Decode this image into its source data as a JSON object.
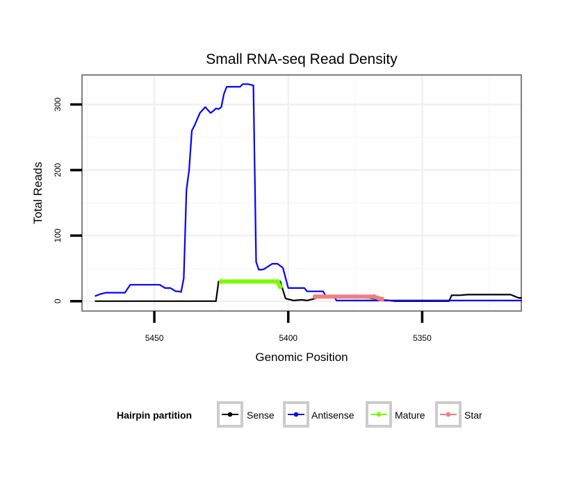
{
  "chart_data": {
    "type": "line",
    "title": "Small RNA-seq Read Density",
    "xlabel": "Genomic Position",
    "ylabel": "Total Reads",
    "x_reversed": true,
    "xlim": [
      5477,
      5313
    ],
    "ylim": [
      -15,
      345
    ],
    "xticks": [
      5450,
      5400,
      5350
    ],
    "yticks": [
      0,
      100,
      200,
      300
    ],
    "grid": true,
    "legend": {
      "title": "Hairpin partition",
      "position": "bottom",
      "items": [
        "Sense",
        "Antisense",
        "Mature",
        "Star"
      ]
    },
    "series": [
      {
        "name": "Sense",
        "color": "#000000",
        "x": [
          5472,
          5472,
          5427,
          5426,
          5424,
          5405,
          5403,
          5401,
          5398,
          5395,
          5393,
          5390,
          5389,
          5385,
          5380,
          5370,
          5365,
          5360,
          5350,
          5340,
          5339,
          5336,
          5333,
          5330,
          5325,
          5320,
          5317,
          5314,
          5313
        ],
        "y": [
          0,
          0,
          0,
          30,
          31,
          31,
          30,
          4,
          1,
          2,
          1,
          4,
          7,
          7,
          7,
          5,
          2,
          0,
          0,
          0,
          9,
          9,
          10,
          10,
          10,
          10,
          10,
          5,
          5
        ]
      },
      {
        "name": "Antisense",
        "color": "#0000ff",
        "x": [
          5472,
          5470,
          5468,
          5461,
          5459,
          5457,
          5448,
          5446,
          5444,
          5442,
          5441,
          5440,
          5439,
          5438,
          5437,
          5436,
          5435,
          5433,
          5431,
          5429,
          5428,
          5427,
          5426,
          5425,
          5424,
          5423,
          5418,
          5417,
          5415,
          5413,
          5412,
          5411,
          5410,
          5409,
          5406,
          5404,
          5402,
          5400,
          5394,
          5393,
          5387,
          5386,
          5383,
          5382,
          5313
        ],
        "y": [
          8,
          11,
          13,
          13,
          25,
          25,
          25,
          20,
          20,
          15,
          15,
          14,
          35,
          170,
          200,
          260,
          268,
          287,
          296,
          287,
          290,
          294,
          293,
          296,
          316,
          327,
          327,
          331,
          331,
          329,
          60,
          48,
          48,
          49,
          57,
          57,
          51,
          20,
          20,
          15,
          15,
          8,
          8,
          1,
          1
        ]
      },
      {
        "name": "Mature",
        "color": "#7cfc00",
        "x": [
          5425,
          5404,
          5403
        ],
        "y": [
          30,
          30,
          22
        ]
      },
      {
        "name": "Star",
        "color": "#f08080",
        "x": [
          5390,
          5368,
          5366,
          5365
        ],
        "y": [
          7,
          7,
          4,
          3
        ]
      }
    ]
  }
}
